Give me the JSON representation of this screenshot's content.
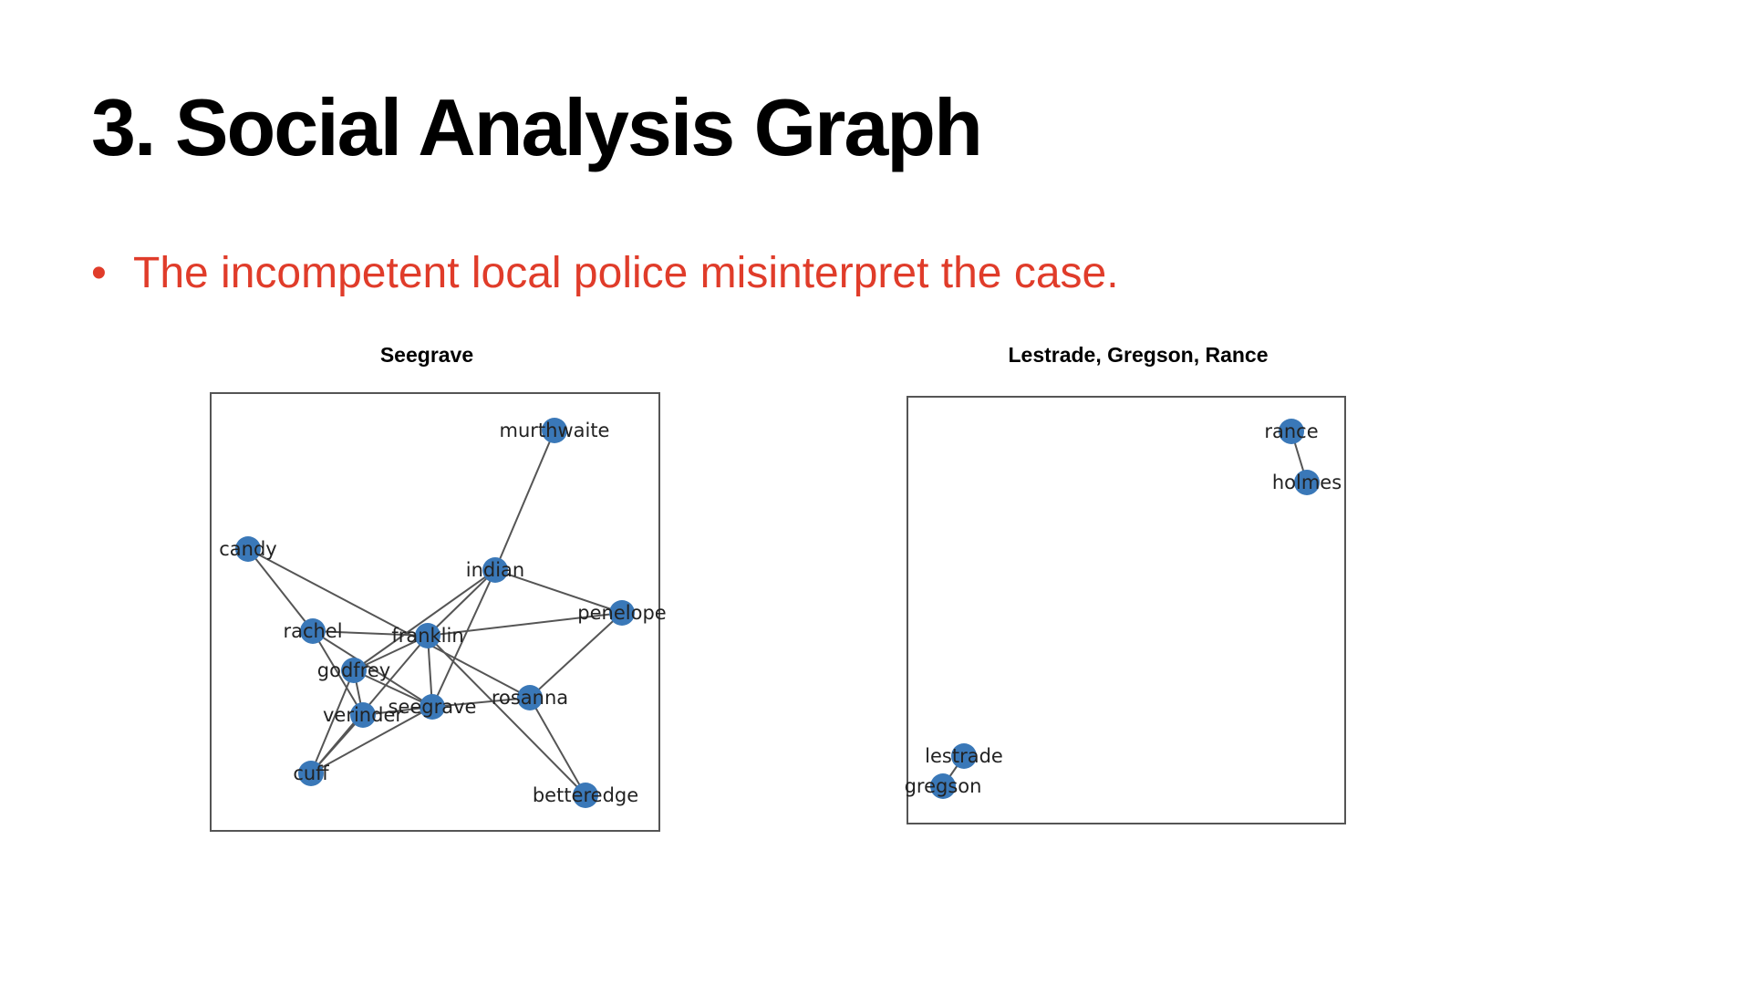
{
  "slide": {
    "title": "3. Social Analysis Graph",
    "bullet": "•",
    "bullet_text": "The incompetent local police misinterpret the case.",
    "bullet_color": "#e03c2a"
  },
  "colors": {
    "node": "#3a78b8",
    "edge": "#555555",
    "frame": "#555555",
    "label": "#222222"
  },
  "graphs": [
    {
      "title": "Seegrave",
      "nodes": [
        {
          "id": "murthwaite",
          "label": "murthwaite"
        },
        {
          "id": "candy",
          "label": "candy"
        },
        {
          "id": "indian",
          "label": "indian"
        },
        {
          "id": "penelope",
          "label": "penelope"
        },
        {
          "id": "rachel",
          "label": "rachel"
        },
        {
          "id": "franklin",
          "label": "franklin"
        },
        {
          "id": "godfrey",
          "label": "godfrey"
        },
        {
          "id": "rosanna",
          "label": "rosanna"
        },
        {
          "id": "verinder",
          "label": "verinder"
        },
        {
          "id": "seegrave",
          "label": "seegrave"
        },
        {
          "id": "cuff",
          "label": "cuff"
        },
        {
          "id": "betteredge",
          "label": "betteredge"
        }
      ],
      "edges": [
        [
          "murthwaite",
          "indian"
        ],
        [
          "indian",
          "penelope"
        ],
        [
          "indian",
          "franklin"
        ],
        [
          "indian",
          "seegrave"
        ],
        [
          "indian",
          "godfrey"
        ],
        [
          "candy",
          "rachel"
        ],
        [
          "candy",
          "rosanna"
        ],
        [
          "rachel",
          "franklin"
        ],
        [
          "rachel",
          "seegrave"
        ],
        [
          "rachel",
          "verinder"
        ],
        [
          "franklin",
          "penelope"
        ],
        [
          "franklin",
          "godfrey"
        ],
        [
          "franklin",
          "seegrave"
        ],
        [
          "franklin",
          "betteredge"
        ],
        [
          "franklin",
          "cuff"
        ],
        [
          "penelope",
          "rosanna"
        ],
        [
          "godfrey",
          "verinder"
        ],
        [
          "godfrey",
          "seegrave"
        ],
        [
          "godfrey",
          "cuff"
        ],
        [
          "verinder",
          "seegrave"
        ],
        [
          "verinder",
          "cuff"
        ],
        [
          "seegrave",
          "rosanna"
        ],
        [
          "seegrave",
          "cuff"
        ],
        [
          "rosanna",
          "betteredge"
        ]
      ]
    },
    {
      "title": "Lestrade, Gregson, Rance",
      "nodes": [
        {
          "id": "rance",
          "label": "rance"
        },
        {
          "id": "holmes",
          "label": "holmes"
        },
        {
          "id": "lestrade",
          "label": "lestrade"
        },
        {
          "id": "gregson",
          "label": "gregson"
        }
      ],
      "edges": [
        [
          "rance",
          "holmes"
        ],
        [
          "lestrade",
          "gregson"
        ]
      ]
    }
  ]
}
